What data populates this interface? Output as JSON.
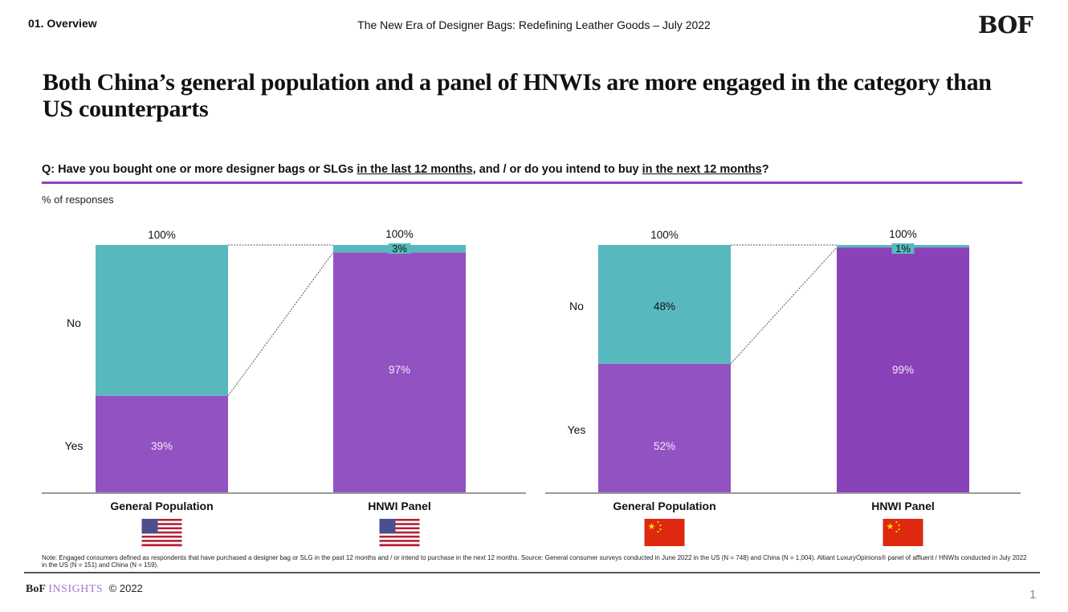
{
  "header": {
    "section": "01. Overview",
    "doc_title": "The New Era of Designer Bags: Redefining Leather Goods – July 2022",
    "logo": "BOF"
  },
  "headline": "Both China’s general population and a panel of HNWIs are more engaged in the category than US counterparts",
  "question": {
    "prefix": "Q: Have you bought one or more designer bags or SLGs ",
    "underline1": "in the last 12 months",
    "middle": ", and / or do you intend to buy ",
    "underline2": "in the next 12 months",
    "suffix": "?"
  },
  "unit_label": "% of responses",
  "colors": {
    "yes": "#9352c2",
    "yes_dark": "#8a42b9",
    "no": "#57b9bf",
    "accent": "#8e44c0"
  },
  "chart_data": [
    {
      "type": "bar",
      "stacked": true,
      "country": "US",
      "categories": [
        "General Population",
        "HNWI Panel"
      ],
      "flag": "us-flag",
      "series": [
        {
          "name": "Yes",
          "values": [
            39,
            97
          ]
        },
        {
          "name": "No",
          "values": [
            61,
            3
          ]
        }
      ],
      "totals": [
        "100%",
        "100%"
      ],
      "data_labels": {
        "Yes": [
          "39%",
          "97%"
        ],
        "No": [
          "",
          "3%"
        ]
      },
      "row_labels": [
        "No",
        "Yes"
      ],
      "ylim": [
        0,
        100
      ]
    },
    {
      "type": "bar",
      "stacked": true,
      "country": "China",
      "categories": [
        "General Population",
        "HNWI Panel"
      ],
      "flag": "china-flag",
      "series": [
        {
          "name": "Yes",
          "values": [
            52,
            99
          ]
        },
        {
          "name": "No",
          "values": [
            48,
            1
          ]
        }
      ],
      "totals": [
        "100%",
        "100%"
      ],
      "data_labels": {
        "Yes": [
          "52%",
          "99%"
        ],
        "No": [
          "48%",
          "1%"
        ]
      },
      "row_labels": [
        "No",
        "Yes"
      ],
      "ylim": [
        0,
        100
      ]
    }
  ],
  "footer": {
    "note": "Note: Engaged consumers defined as respondents that have purchased a designer bag or SLG in the past 12 months and / or intend to purchase in the next 12 months. Source: General consumer surveys conducted in June 2022 in the US (N = 748) and China (N = 1,004). Altiant LuxuryOpinions® panel of affluent / HNWIs conducted in July 2022 in the US (N = 151) and China (N = 159).",
    "brand_bof": "BoF",
    "brand_insights": "INSIGHTS",
    "copyright": "© 2022",
    "page_number": "1"
  }
}
